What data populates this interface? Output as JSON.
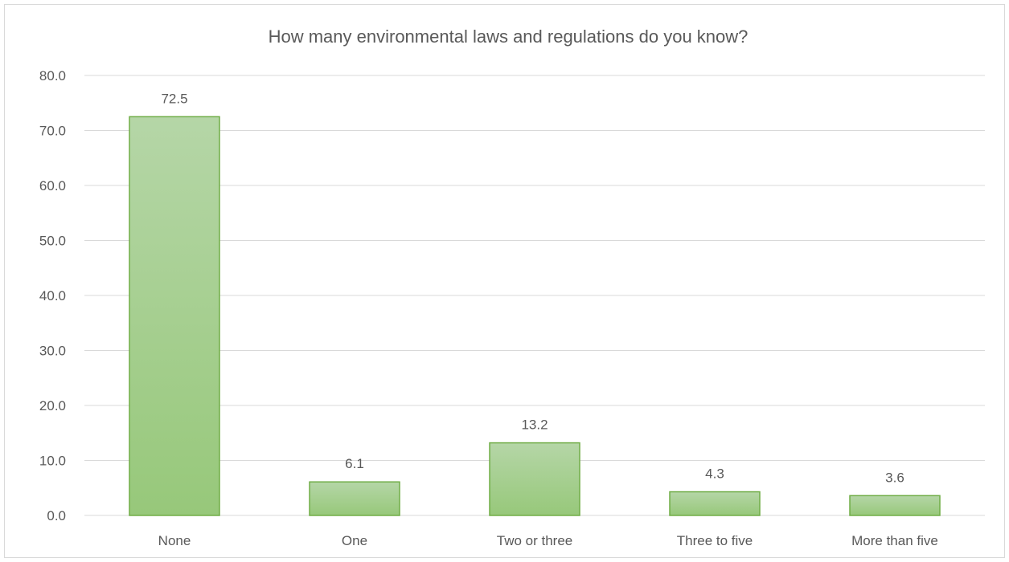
{
  "chart_data": {
    "type": "bar",
    "title": "How many environmental laws and regulations do you know?",
    "categories": [
      "None",
      "One",
      "Two or three",
      "Three to five",
      "More than five"
    ],
    "values": [
      72.5,
      6.1,
      13.2,
      4.3,
      3.6
    ],
    "data_labels": [
      "72.5",
      "6.1",
      "13.2",
      "4.3",
      "3.6"
    ],
    "y_ticks": [
      "0.0",
      "10.0",
      "20.0",
      "30.0",
      "40.0",
      "50.0",
      "60.0",
      "70.0",
      "80.0"
    ],
    "ylim": [
      0,
      80
    ],
    "grid": true,
    "legend": "none",
    "colors": {
      "bar_fill_top": "#b5d6a7",
      "bar_fill_bottom": "#97c87a",
      "bar_border": "#70ad47",
      "text": "#595959",
      "grid": "#d9d9d9"
    }
  }
}
